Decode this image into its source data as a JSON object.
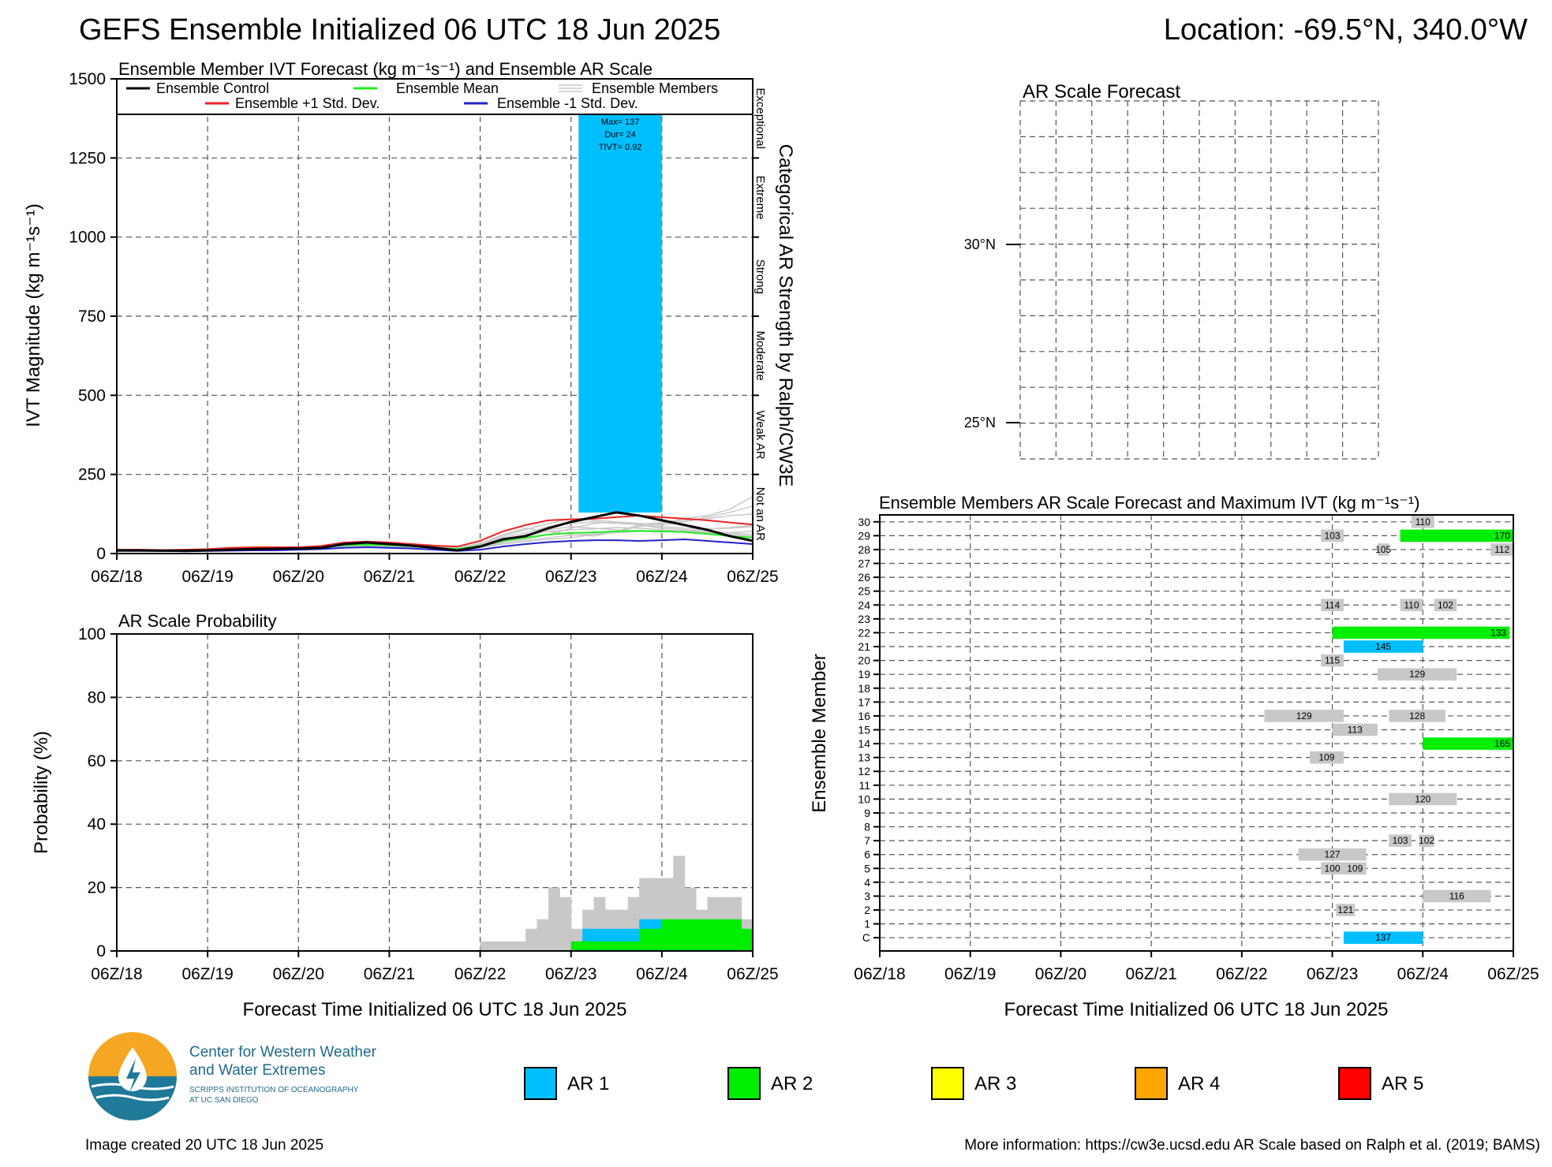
{
  "header": {
    "title": "GEFS Ensemble Initialized 06 UTC 18 Jun 2025",
    "location": "Location: -69.5°N, 340.0°W"
  },
  "time_ticks": [
    "06Z/18",
    "06Z/19",
    "06Z/20",
    "06Z/21",
    "06Z/22",
    "06Z/23",
    "06Z/24",
    "06Z/25"
  ],
  "xlabel": "Forecast Time Initialized 06 UTC 18 Jun 2025",
  "footer": {
    "created": "Image created 20 UTC 18 Jun 2025",
    "more_info": "More information: https://cw3e.ucsd.edu AR Scale based on Ralph et al. (2019; BAMS)",
    "logo_line1": "Center for Western Weather",
    "logo_line2": "and Water Extremes",
    "logo_line3": "SCRIPPS INSTITUTION OF OCEANOGRAPHY",
    "logo_line4": "AT UC SAN DIEGO"
  },
  "legend_ar": [
    {
      "label": "AR 1",
      "color": "#00bfff"
    },
    {
      "label": "AR 2",
      "color": "#00ee00"
    },
    {
      "label": "AR 3",
      "color": "#ffff00"
    },
    {
      "label": "AR 4",
      "color": "#ffa500"
    },
    {
      "label": "AR 5",
      "color": "#ff0000"
    }
  ],
  "chart_data": [
    {
      "id": "ivt",
      "type": "line",
      "title": "Ensemble Member IVT Forecast (kg m⁻¹s⁻¹) and Ensemble AR Scale",
      "ylabel": "IVT Magnitude (kg m⁻¹s⁻¹)",
      "right_label": "Categorical AR Strength by Ralph/CW3E",
      "categories_right": [
        "Exceptional",
        "Extreme",
        "Strong",
        "Moderate",
        "Weak AR",
        "Not an AR"
      ],
      "ylim": [
        0,
        1500
      ],
      "yticks": [
        0,
        250,
        500,
        750,
        1000,
        1250,
        1500
      ],
      "xlim_hours": [
        0,
        168
      ],
      "legend": {
        "control": "Ensemble Control",
        "mean": "Ensemble Mean",
        "members": "Ensemble Members",
        "plus": "Ensemble +1 Std. Dev.",
        "minus": "Ensemble -1 Std. Dev."
      },
      "ar_event": {
        "start_hour": 122,
        "end_hour": 144,
        "color": "#00bfff",
        "max_text": "Max= 137",
        "dur_text": "Dur= 24",
        "tivt_text": "TIVT= 0.92"
      },
      "x_hours": [
        0,
        6,
        12,
        18,
        24,
        30,
        36,
        42,
        48,
        54,
        60,
        66,
        72,
        78,
        84,
        90,
        96,
        102,
        108,
        114,
        120,
        126,
        132,
        138,
        144,
        150,
        156,
        162,
        168
      ],
      "series": [
        {
          "key": "control",
          "color": "#000000",
          "values": [
            10,
            10,
            9,
            9,
            10,
            12,
            14,
            15,
            16,
            18,
            30,
            35,
            30,
            25,
            18,
            10,
            22,
            45,
            55,
            80,
            100,
            115,
            130,
            120,
            105,
            90,
            75,
            55,
            40
          ]
        },
        {
          "key": "mean",
          "color": "#22ee22",
          "values": [
            10,
            10,
            9,
            9,
            11,
            13,
            15,
            16,
            17,
            19,
            26,
            28,
            26,
            23,
            18,
            14,
            25,
            40,
            50,
            60,
            65,
            67,
            70,
            72,
            70,
            68,
            62,
            55,
            50
          ]
        },
        {
          "key": "plus",
          "color": "#ee2222",
          "values": [
            12,
            12,
            11,
            12,
            14,
            18,
            20,
            20,
            20,
            24,
            35,
            38,
            35,
            30,
            25,
            22,
            40,
            70,
            90,
            105,
            108,
            110,
            115,
            120,
            115,
            110,
            105,
            98,
            92
          ]
        },
        {
          "key": "minus",
          "color": "#2222cc",
          "values": [
            8,
            8,
            8,
            7,
            8,
            9,
            10,
            10,
            12,
            14,
            18,
            20,
            18,
            16,
            12,
            8,
            12,
            22,
            30,
            36,
            40,
            42,
            42,
            40,
            42,
            45,
            40,
            35,
            30
          ]
        }
      ],
      "members": [
        [
          10,
          10,
          9,
          10,
          12,
          14,
          16,
          18,
          18,
          20,
          28,
          30,
          26,
          22,
          16,
          12,
          30,
          60,
          80,
          70,
          60,
          55,
          70,
          90,
          80,
          75,
          70,
          65,
          60
        ],
        [
          9,
          9,
          9,
          9,
          10,
          12,
          13,
          14,
          15,
          17,
          24,
          26,
          24,
          22,
          18,
          16,
          20,
          35,
          45,
          60,
          80,
          95,
          100,
          90,
          85,
          80,
          78,
          80,
          85
        ],
        [
          11,
          11,
          10,
          10,
          12,
          15,
          16,
          16,
          17,
          20,
          32,
          34,
          30,
          26,
          20,
          15,
          28,
          50,
          65,
          85,
          95,
          100,
          95,
          92,
          98,
          110,
          120,
          140,
          180
        ],
        [
          10,
          10,
          9,
          9,
          11,
          13,
          14,
          15,
          16,
          18,
          26,
          30,
          28,
          24,
          18,
          14,
          22,
          38,
          55,
          70,
          75,
          78,
          82,
          80,
          75,
          70,
          65,
          60,
          55
        ],
        [
          8,
          8,
          8,
          8,
          9,
          10,
          12,
          12,
          13,
          15,
          20,
          22,
          20,
          18,
          14,
          10,
          18,
          30,
          40,
          50,
          58,
          62,
          66,
          70,
          72,
          70,
          68,
          66,
          70
        ],
        [
          12,
          12,
          11,
          11,
          13,
          16,
          18,
          18,
          19,
          22,
          34,
          36,
          32,
          28,
          22,
          18,
          32,
          55,
          75,
          95,
          110,
          105,
          100,
          95,
          90,
          100,
          115,
          130,
          150
        ],
        [
          9,
          9,
          8,
          8,
          10,
          12,
          14,
          14,
          15,
          17,
          22,
          24,
          22,
          20,
          16,
          12,
          20,
          30,
          38,
          45,
          50,
          60,
          70,
          85,
          95,
          105,
          110,
          120,
          125
        ],
        [
          10,
          10,
          10,
          10,
          11,
          13,
          15,
          16,
          16,
          18,
          28,
          32,
          28,
          24,
          18,
          14,
          24,
          44,
          60,
          75,
          85,
          80,
          75,
          70,
          68,
          72,
          78,
          82,
          90
        ]
      ]
    },
    {
      "id": "prob",
      "type": "bar",
      "title": "AR Scale Probability",
      "ylabel": "Probability (%)",
      "ylim": [
        0,
        100
      ],
      "yticks": [
        0,
        20,
        40,
        60,
        80,
        100
      ],
      "bin_hours": 3,
      "start_hour": 96,
      "series": [
        {
          "name": "Any AR",
          "color": "#c8c8c8",
          "values": [
            3,
            3,
            3,
            3,
            7,
            10,
            20,
            17,
            7,
            13,
            17,
            13,
            13,
            17,
            23,
            23,
            23,
            30,
            20,
            13,
            17,
            17,
            17,
            10
          ]
        },
        {
          "name": "AR 1",
          "color": "#00bfff",
          "values": [
            0,
            0,
            0,
            0,
            0,
            0,
            0,
            0,
            0,
            7,
            7,
            7,
            7,
            7,
            10,
            10,
            0,
            0,
            0,
            0,
            0,
            0,
            0,
            0
          ]
        },
        {
          "name": "AR 2",
          "color": "#00ee00",
          "values": [
            0,
            0,
            0,
            0,
            0,
            0,
            0,
            0,
            3,
            3,
            3,
            3,
            3,
            3,
            7,
            7,
            10,
            10,
            10,
            10,
            10,
            10,
            10,
            7
          ]
        }
      ]
    },
    {
      "id": "map",
      "type": "map",
      "title": "AR Scale Forecast",
      "lat_labels": [
        "30°N",
        "25°N"
      ]
    },
    {
      "id": "members",
      "type": "heatmap",
      "title": "Ensemble Members AR Scale Forecast and Maximum IVT (kg m⁻¹s⁻¹)",
      "ylabel": "Ensemble Member",
      "rows": [
        "C",
        "1",
        "2",
        "3",
        "4",
        "5",
        "6",
        "7",
        "8",
        "9",
        "10",
        "11",
        "12",
        "13",
        "14",
        "15",
        "16",
        "17",
        "18",
        "19",
        "20",
        "21",
        "22",
        "23",
        "24",
        "25",
        "26",
        "27",
        "28",
        "29",
        "30"
      ],
      "blocks": [
        {
          "row": "C",
          "start": 123,
          "end": 144,
          "cat": 1,
          "label": "137"
        },
        {
          "row": "2",
          "start": 121,
          "end": 126,
          "cat": 0,
          "label": "121"
        },
        {
          "row": "3",
          "start": 144,
          "end": 162,
          "cat": 0,
          "label": "116"
        },
        {
          "row": "5",
          "start": 117,
          "end": 123,
          "cat": 0,
          "label": "100"
        },
        {
          "row": "5",
          "start": 123,
          "end": 129,
          "cat": 0,
          "label": "109"
        },
        {
          "row": "6",
          "start": 111,
          "end": 129,
          "cat": 0,
          "label": "127"
        },
        {
          "row": "7",
          "start": 135,
          "end": 141,
          "cat": 0,
          "label": "103"
        },
        {
          "row": "7",
          "start": 143,
          "end": 147,
          "cat": 0,
          "label": "102"
        },
        {
          "row": "10",
          "start": 135,
          "end": 153,
          "cat": 0,
          "label": "120"
        },
        {
          "row": "13",
          "start": 114,
          "end": 123,
          "cat": 0,
          "label": "109"
        },
        {
          "row": "14",
          "start": 144,
          "end": 168,
          "cat": 2,
          "label": "165"
        },
        {
          "row": "15",
          "start": 120,
          "end": 132,
          "cat": 0,
          "label": "113"
        },
        {
          "row": "16",
          "start": 102,
          "end": 123,
          "cat": 0,
          "label": "129"
        },
        {
          "row": "16",
          "start": 135,
          "end": 150,
          "cat": 0,
          "label": "128"
        },
        {
          "row": "19",
          "start": 132,
          "end": 153,
          "cat": 0,
          "label": "129"
        },
        {
          "row": "20",
          "start": 117,
          "end": 123,
          "cat": 0,
          "label": "115"
        },
        {
          "row": "21",
          "start": 123,
          "end": 144,
          "cat": 1,
          "label": "145"
        },
        {
          "row": "22",
          "start": 120,
          "end": 167,
          "cat": 2,
          "label": "133"
        },
        {
          "row": "24",
          "start": 117,
          "end": 123,
          "cat": 0,
          "label": "114"
        },
        {
          "row": "24",
          "start": 138,
          "end": 144,
          "cat": 0,
          "label": "110"
        },
        {
          "row": "24",
          "start": 147,
          "end": 153,
          "cat": 0,
          "label": "102"
        },
        {
          "row": "28",
          "start": 132,
          "end": 135,
          "cat": 0,
          "label": "105"
        },
        {
          "row": "28",
          "start": 162,
          "end": 168,
          "cat": 0,
          "label": "112"
        },
        {
          "row": "29",
          "start": 117,
          "end": 123,
          "cat": 0,
          "label": "103"
        },
        {
          "row": "29",
          "start": 138,
          "end": 168,
          "cat": 2,
          "label": "170"
        },
        {
          "row": "30",
          "start": 141,
          "end": 147,
          "cat": 0,
          "label": "110"
        }
      ],
      "cat_colors": [
        "#c8c8c8",
        "#00bfff",
        "#00ee00",
        "#ffff00",
        "#ffa500",
        "#ff0000"
      ]
    }
  ]
}
